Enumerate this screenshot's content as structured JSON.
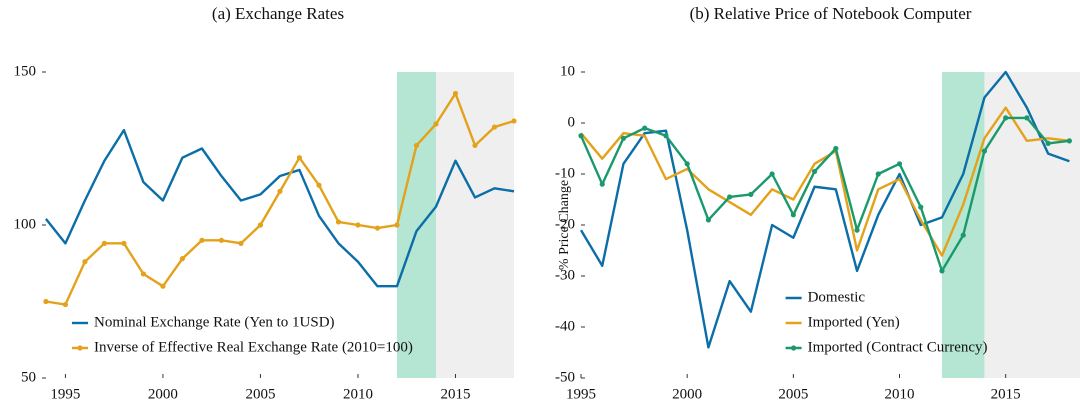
{
  "chart_data": [
    {
      "type": "line",
      "title": "(a) Exchange Rates",
      "x": [
        1994,
        1995,
        1996,
        1997,
        1998,
        1999,
        2000,
        2001,
        2002,
        2003,
        2004,
        2005,
        2006,
        2007,
        2008,
        2009,
        2010,
        2011,
        2012,
        2013,
        2014,
        2015,
        2016,
        2017,
        2018
      ],
      "xlim": [
        1993.8,
        2018
      ],
      "ylim": [
        50,
        150
      ],
      "xticks": [
        1995,
        2000,
        2005,
        2010,
        2015
      ],
      "yticks": [
        50,
        100,
        150
      ],
      "legend": "lower left",
      "shaded_regions": [
        {
          "xlim": [
            2012,
            2014
          ],
          "color": "#b5e5d3"
        },
        {
          "xlim": [
            2014,
            2018
          ],
          "color": "#efefef"
        }
      ],
      "series": [
        {
          "name": "Nominal Exchange Rate (Yen to 1USD)",
          "color": "#0b6ea8",
          "marker": false,
          "values": [
            102,
            94,
            108,
            121,
            131,
            114,
            108,
            122,
            125,
            116,
            108,
            110,
            116,
            118,
            103,
            94,
            88,
            80,
            80,
            98,
            106,
            121,
            109,
            112,
            111
          ]
        },
        {
          "name": "Inverse of Effective Real Exchange Rate (2010=100)",
          "color": "#e3a21a",
          "marker": true,
          "values": [
            75,
            74,
            88,
            94,
            94,
            84,
            80,
            89,
            95,
            95,
            94,
            100,
            111,
            122,
            113,
            101,
            100,
            99,
            100,
            126,
            133,
            143,
            126,
            132,
            134
          ]
        }
      ]
    },
    {
      "type": "line",
      "title": "(b) Relative Price of Notebook Computer",
      "ylabel": "% Price Change",
      "x": [
        1995,
        1996,
        1997,
        1998,
        1999,
        2000,
        2001,
        2002,
        2003,
        2004,
        2005,
        2006,
        2007,
        2008,
        2009,
        2010,
        2011,
        2012,
        2013,
        2014,
        2015,
        2016,
        2017,
        2018
      ],
      "xlim": [
        1995,
        2018.5
      ],
      "ylim": [
        -50,
        10
      ],
      "xticks": [
        1995,
        2000,
        2005,
        2010,
        2015
      ],
      "yticks": [
        -50,
        -40,
        -30,
        -20,
        -10,
        0,
        10
      ],
      "legend": "lower center",
      "shaded_regions": [
        {
          "xlim": [
            2012,
            2014
          ],
          "color": "#b5e5d3"
        },
        {
          "xlim": [
            2014,
            2018.5
          ],
          "color": "#efefef"
        }
      ],
      "series": [
        {
          "name": "Domestic",
          "color": "#0b6ea8",
          "marker": false,
          "values": [
            -21,
            -28,
            -8,
            -2,
            -1.5,
            -21,
            -44,
            -31,
            -37,
            -20,
            -22.5,
            -12.5,
            -13,
            -29,
            -18,
            -10,
            -20,
            -18.5,
            -10,
            5,
            10,
            3,
            -6,
            -7.5
          ]
        },
        {
          "name": "Imported (Yen)",
          "color": "#e3a21a",
          "marker": false,
          "values": [
            -2,
            -7,
            -2,
            -2.5,
            -11,
            -9,
            -13,
            -15.5,
            -18,
            -13,
            -15,
            -8,
            -5.5,
            -25,
            -13,
            -11,
            -19,
            -26,
            -16,
            -3,
            3,
            -3.5,
            -3,
            -3.5
          ]
        },
        {
          "name": "Imported (Contract Currency)",
          "color": "#1a9a6c",
          "marker": true,
          "values": [
            -2.5,
            -12,
            -3,
            -1,
            -2.5,
            -8,
            -19,
            -14.5,
            -14,
            -10,
            -18,
            -9.5,
            -5,
            -21,
            -10,
            -8,
            -16.5,
            -29,
            -22,
            -5.5,
            1,
            1,
            -4,
            -3.5
          ]
        }
      ]
    }
  ]
}
